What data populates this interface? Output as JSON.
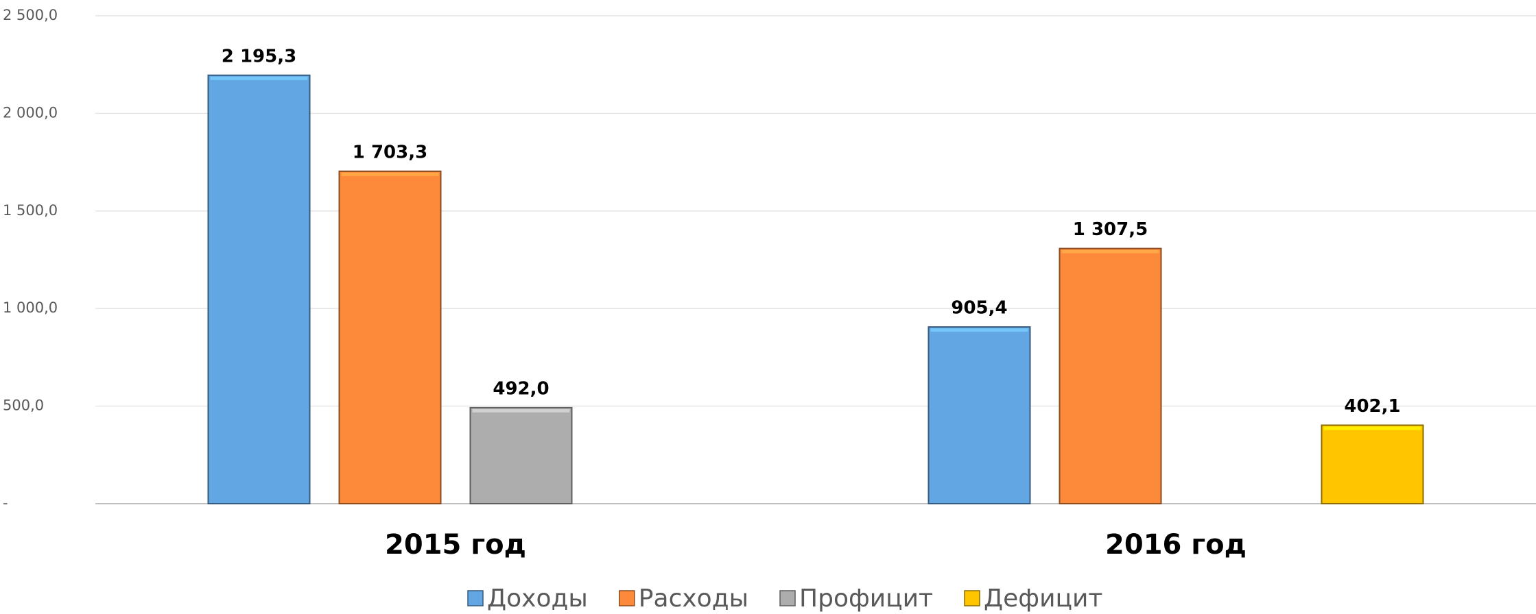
{
  "chart_data": {
    "type": "bar",
    "categories": [
      "2015 год",
      "2016 год"
    ],
    "series": [
      {
        "name": "Доходы",
        "color": "#62a6e3",
        "values": [
          2195.3,
          905.4
        ],
        "value_labels": [
          "2 195,3",
          "905,4"
        ]
      },
      {
        "name": "Расходы",
        "color": "#fd8a3b",
        "values": [
          1703.3,
          1307.5
        ],
        "value_labels": [
          "1 703,3",
          "1 307,5"
        ]
      },
      {
        "name": "Профицит",
        "color": "#adadad",
        "values": [
          492.0,
          null
        ],
        "value_labels": [
          "492,0",
          null
        ]
      },
      {
        "name": "Дефицит",
        "color": "#ffc600",
        "values": [
          null,
          402.1
        ],
        "value_labels": [
          null,
          "402,1"
        ]
      }
    ],
    "ylim": [
      0,
      2500
    ],
    "yticks": [
      {
        "value": 0,
        "label": "-"
      },
      {
        "value": 500,
        "label": "500,0"
      },
      {
        "value": 1000,
        "label": "1 000,0"
      },
      {
        "value": 1500,
        "label": "1 500,0"
      },
      {
        "value": 2000,
        "label": "2 000,0"
      },
      {
        "value": 2500,
        "label": "2 500,0"
      }
    ],
    "grid": true,
    "legend": "bottom"
  }
}
